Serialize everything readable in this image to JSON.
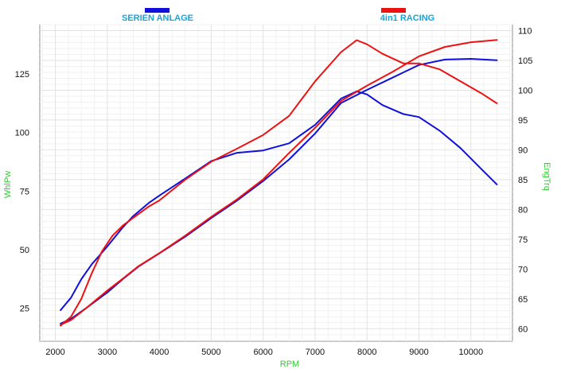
{
  "chart_data": {
    "type": "line",
    "xlabel": "RPM",
    "ylabel_left": "WhlPw",
    "ylabel_right": "EngTrq",
    "xlim": [
      1700,
      10800
    ],
    "ylim_left": [
      11,
      146
    ],
    "ylim_right": [
      57.9,
      111
    ],
    "x_ticks": [
      "2000",
      "3000",
      "4000",
      "5000",
      "6000",
      "7000",
      "8000",
      "9000",
      "10000"
    ],
    "x_tick_values": [
      2000,
      3000,
      4000,
      5000,
      6000,
      7000,
      8000,
      9000,
      10000
    ],
    "y_left_ticks": [
      "25",
      "50",
      "75",
      "100",
      "125"
    ],
    "y_left_tick_values": [
      25,
      50,
      75,
      100,
      125
    ],
    "y_right_ticks": [
      "60",
      "65",
      "70",
      "75",
      "80",
      "85",
      "90",
      "95",
      "100",
      "105",
      "110"
    ],
    "y_right_tick_values": [
      60,
      65,
      70,
      75,
      80,
      85,
      90,
      95,
      100,
      105,
      110
    ],
    "legend": [
      {
        "name": "SERIEN ANLAGE",
        "color": "#1010dd"
      },
      {
        "name": "4in1 RACING",
        "color": "#ee1111"
      }
    ],
    "series": [
      {
        "name": "SERIEN ANLAGE",
        "quantity": "WhlPw",
        "axis": "left",
        "color": "#1010dd",
        "x": [
          2100,
          2300,
          2600,
          3000,
          3300,
          3600,
          4000,
          4500,
          5000,
          5500,
          6000,
          6500,
          7000,
          7500,
          8000,
          8500,
          9000,
          9500,
          10000,
          10500
        ],
        "y": [
          18.5,
          20.5,
          25.2,
          31.8,
          37.5,
          42.8,
          48.4,
          55.6,
          63.5,
          71.0,
          79.3,
          88.5,
          99.6,
          112.6,
          118.2,
          123.5,
          128.8,
          131.1,
          131.4,
          130.8
        ]
      },
      {
        "name": "SERIEN ANLAGE",
        "quantity": "EngTrq",
        "axis": "right",
        "color": "#1010dd",
        "x": [
          2100,
          2300,
          2500,
          2700,
          3000,
          3300,
          3500,
          3800,
          4000,
          4500,
          5000,
          5500,
          6000,
          6500,
          7000,
          7500,
          7800,
          8000,
          8300,
          8700,
          9000,
          9400,
          9800,
          10200,
          10500
        ],
        "y": [
          63.1,
          65.2,
          68.3,
          70.8,
          73.8,
          77.0,
          78.9,
          81.1,
          82.3,
          85.2,
          88.1,
          89.5,
          89.9,
          91.1,
          94.2,
          98.6,
          99.8,
          99.3,
          97.5,
          96.0,
          95.5,
          93.2,
          90.3,
          86.8,
          84.2
        ]
      },
      {
        "name": "4in1 RACING",
        "quantity": "WhlPw",
        "axis": "left",
        "color": "#ee1111",
        "x": [
          2100,
          2300,
          2600,
          3000,
          3300,
          3600,
          4000,
          4500,
          5000,
          5500,
          6000,
          6500,
          7000,
          7500,
          8000,
          8500,
          9000,
          9500,
          10000,
          10500
        ],
        "y": [
          18.0,
          20.0,
          25.2,
          32.6,
          37.7,
          43.0,
          48.5,
          56.0,
          64.0,
          71.5,
          80.0,
          91.3,
          102.0,
          113.5,
          120.0,
          126.0,
          132.5,
          136.5,
          138.5,
          139.5
        ]
      },
      {
        "name": "4in1 RACING",
        "quantity": "EngTrq",
        "axis": "right",
        "color": "#ee1111",
        "x": [
          2100,
          2300,
          2500,
          2700,
          2900,
          3100,
          3300,
          3500,
          3800,
          4000,
          4500,
          5000,
          5500,
          6000,
          6500,
          7000,
          7500,
          7800,
          8000,
          8300,
          8700,
          9000,
          9400,
          9800,
          10200,
          10500
        ],
        "y": [
          60.5,
          62.0,
          65.0,
          69.3,
          73.0,
          75.6,
          77.3,
          78.6,
          80.5,
          81.5,
          85.0,
          88.0,
          90.2,
          92.5,
          95.7,
          101.5,
          106.4,
          108.4,
          107.7,
          106.1,
          104.5,
          104.5,
          103.5,
          101.5,
          99.5,
          97.8
        ]
      }
    ]
  }
}
